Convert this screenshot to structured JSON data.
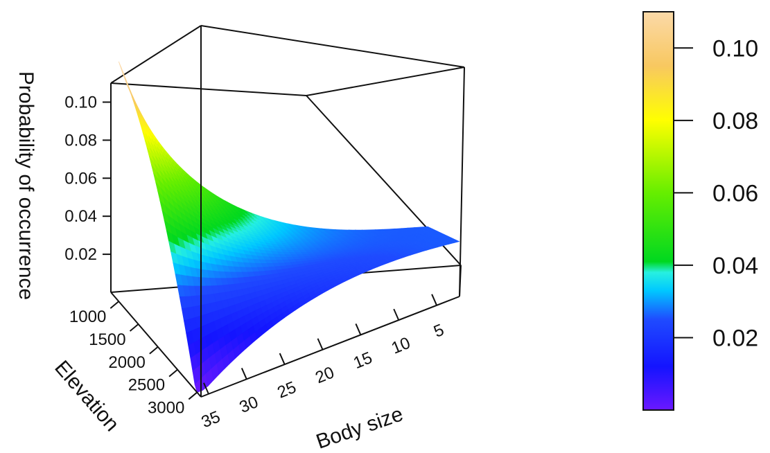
{
  "chart_data": {
    "type": "surface3d",
    "title": "",
    "zlabel": "Probability of occurrence",
    "xlabel": "Body size",
    "ylabel": "Elevation",
    "x_ticks": [
      "35",
      "30",
      "25",
      "20",
      "15",
      "10",
      "5"
    ],
    "y_ticks": [
      "1000",
      "1500",
      "2000",
      "2500",
      "3000"
    ],
    "z_ticks": [
      "0.10",
      "0.08",
      "0.06",
      "0.04",
      "0.02"
    ],
    "xlim": [
      2,
      36
    ],
    "ylim": [
      800,
      3100
    ],
    "zlim": [
      0,
      0.11
    ],
    "surface_corners": [
      {
        "body_size": 35,
        "elevation": 1000,
        "probability": 0.11
      },
      {
        "body_size": 35,
        "elevation": 3000,
        "probability": 0.0
      },
      {
        "body_size": 2,
        "elevation": 1000,
        "probability": 0.026
      },
      {
        "body_size": 2,
        "elevation": 3000,
        "probability": 0.026
      }
    ],
    "colorbar": {
      "range": [
        0,
        0.11
      ],
      "ticks": [
        "0.10",
        "0.08",
        "0.06",
        "0.04",
        "0.02"
      ],
      "tick_values": [
        0.1,
        0.08,
        0.06,
        0.04,
        0.02
      ],
      "colormap_stops": [
        {
          "value": 0.0,
          "color": "#6a18ff"
        },
        {
          "value": 0.012,
          "color": "#1414ff"
        },
        {
          "value": 0.025,
          "color": "#1f4bff"
        },
        {
          "value": 0.033,
          "color": "#00c8ff"
        },
        {
          "value": 0.038,
          "color": "#27f0e0"
        },
        {
          "value": 0.041,
          "color": "#00d820"
        },
        {
          "value": 0.06,
          "color": "#66ee00"
        },
        {
          "value": 0.08,
          "color": "#ffff00"
        },
        {
          "value": 0.095,
          "color": "#f8c860"
        },
        {
          "value": 0.11,
          "color": "#fbd9a8"
        }
      ]
    }
  }
}
